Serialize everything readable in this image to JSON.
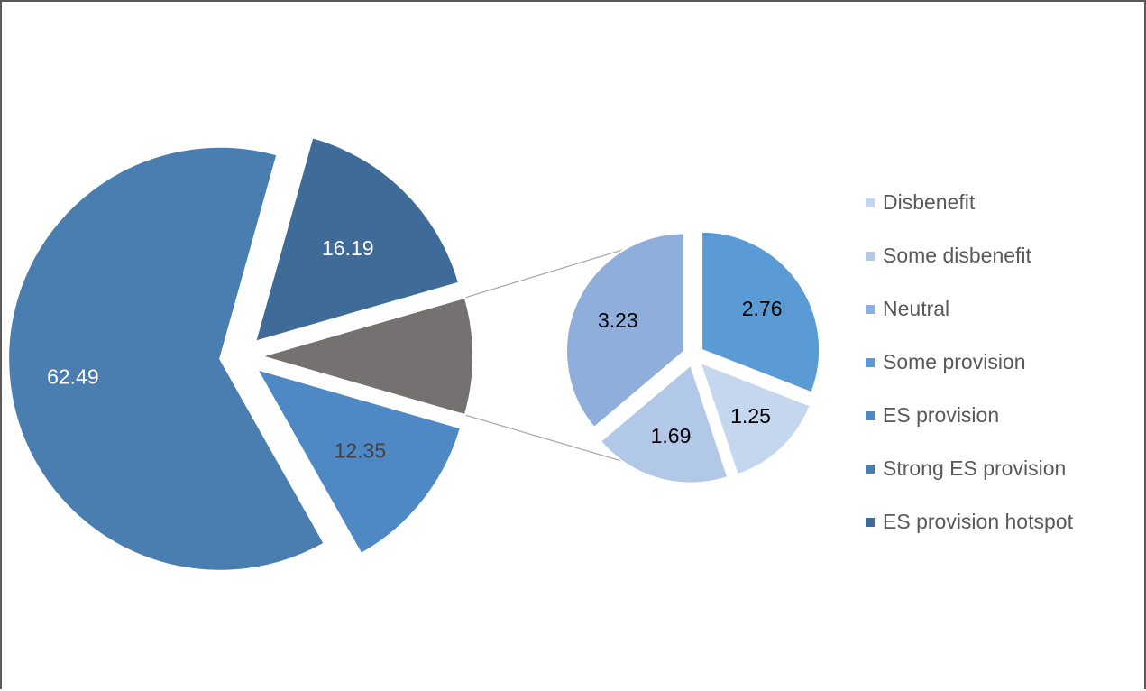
{
  "chart_data": {
    "type": "pie",
    "subtype": "pie-of-pie",
    "title": "",
    "main_pie": [
      {
        "category": "Strong ES provision",
        "value": 62.49,
        "color": "#4a7eb0",
        "label_color": "#ffffff"
      },
      {
        "category": "ES provision hotspot",
        "value": 16.19,
        "color": "#3f6b98",
        "label_color": "#ffffff"
      },
      {
        "category": "other",
        "value": 8.93,
        "color": "#767171",
        "label_color": "#ffffff",
        "show_label": false
      },
      {
        "category": "ES provision",
        "value": 12.35,
        "color": "#4f89c5",
        "label_color": "#404040"
      }
    ],
    "secondary_pie": [
      {
        "category": "Some provision",
        "value": 2.76,
        "color": "#5b9bd5",
        "label_color": "#000000"
      },
      {
        "category": "Disbenefit",
        "value": 1.25,
        "color": "#c5d7ee",
        "label_color": "#000000"
      },
      {
        "category": "Some disbenefit",
        "value": 1.69,
        "color": "#b1c8e8",
        "label_color": "#000000"
      },
      {
        "category": "Neutral",
        "value": 3.23,
        "color": "#8faedb",
        "label_color": "#000000"
      }
    ],
    "legend": {
      "placement": "right",
      "items": [
        {
          "label": "Disbenefit",
          "color": "#c5d7ee"
        },
        {
          "label": "Some disbenefit",
          "color": "#b1c8e8"
        },
        {
          "label": "Neutral",
          "color": "#8faedb"
        },
        {
          "label": "Some provision",
          "color": "#5b9bd5"
        },
        {
          "label": "ES provision",
          "color": "#4f89c5"
        },
        {
          "label": "Strong ES provision",
          "color": "#4a7eb0"
        },
        {
          "label": "ES provision hotspot",
          "color": "#3f6b98"
        }
      ]
    },
    "connector_color": "#a6a6a6"
  }
}
